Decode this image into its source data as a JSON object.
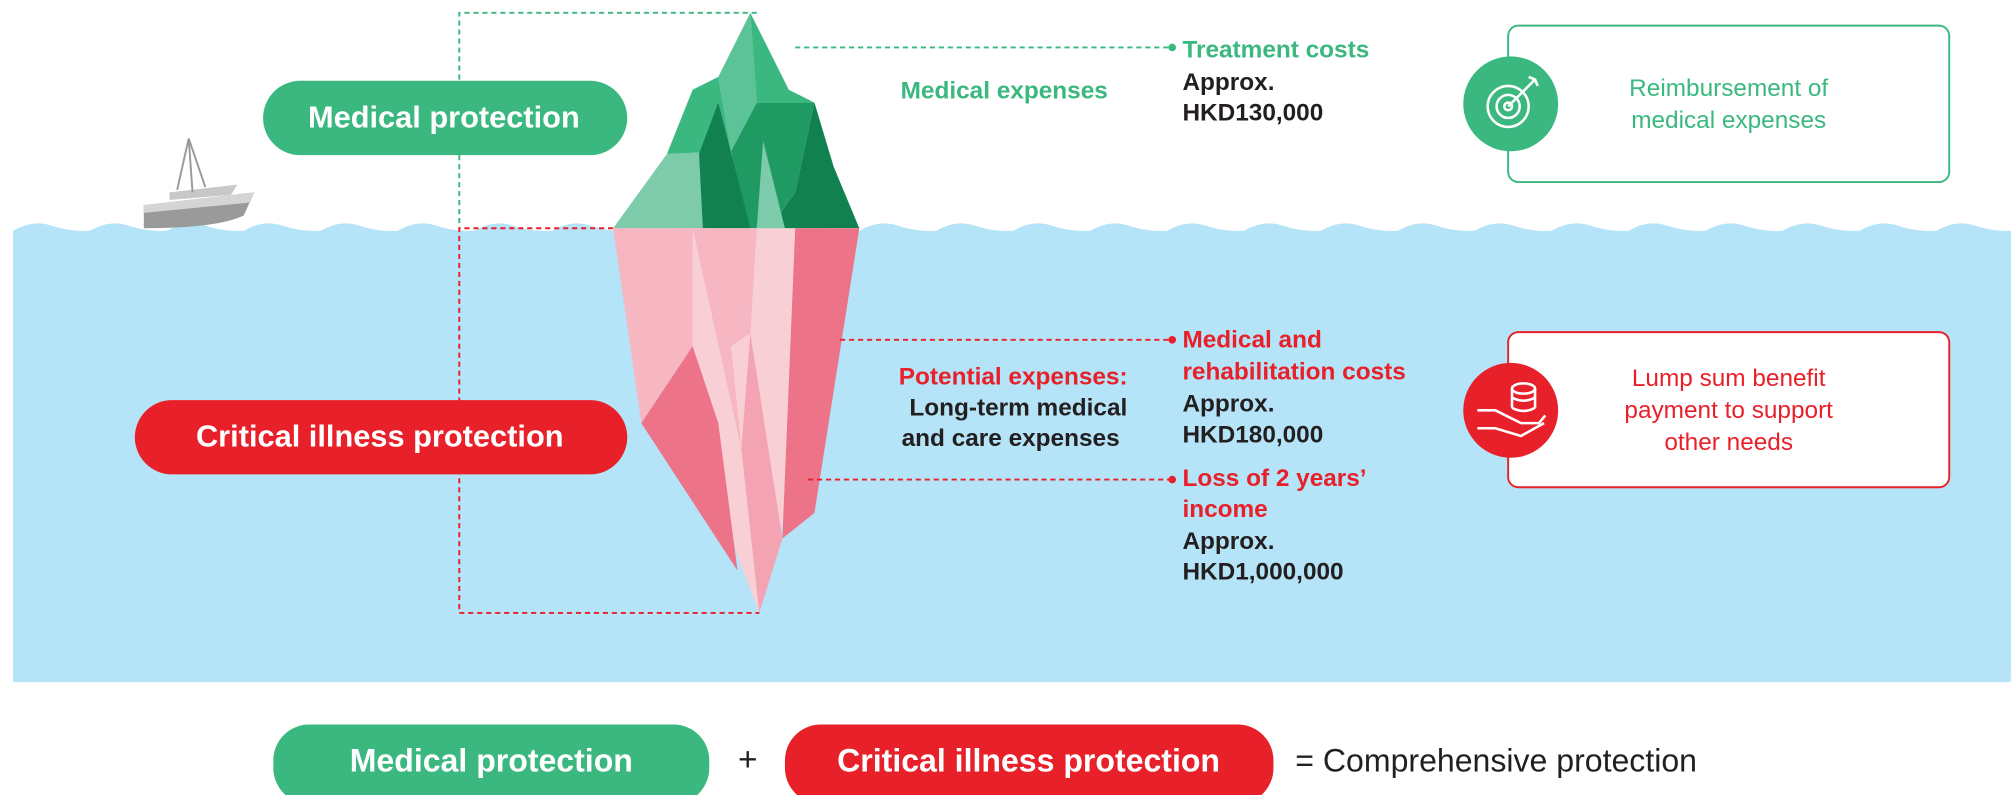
{
  "above": {
    "label": "Medical protection",
    "category": "Medical expenses",
    "items": [
      {
        "title": [
          "Treatment costs"
        ],
        "amount_label": "Approx.",
        "amount": "HKD130,000"
      }
    ],
    "benefit": [
      "Reimbursement of",
      "medical expenses"
    ]
  },
  "below": {
    "label": "Critical illness protection",
    "category": [
      "Potential expenses:",
      "Long-term medical",
      "and care expenses"
    ],
    "items": [
      {
        "title": [
          "Medical and",
          "rehabilitation costs"
        ],
        "amount_label": "Approx.",
        "amount": "HKD180,000"
      },
      {
        "title": [
          "Loss of 2 years’",
          "income"
        ],
        "amount_label": "Approx.",
        "amount": "HKD1,000,000"
      }
    ],
    "benefit": [
      "Lump sum benefit",
      "payment to support",
      "other needs"
    ]
  },
  "footer": {
    "left": "Medical protection",
    "plus": "+",
    "right": "Critical illness protection",
    "result": "= Comprehensive protection"
  }
}
